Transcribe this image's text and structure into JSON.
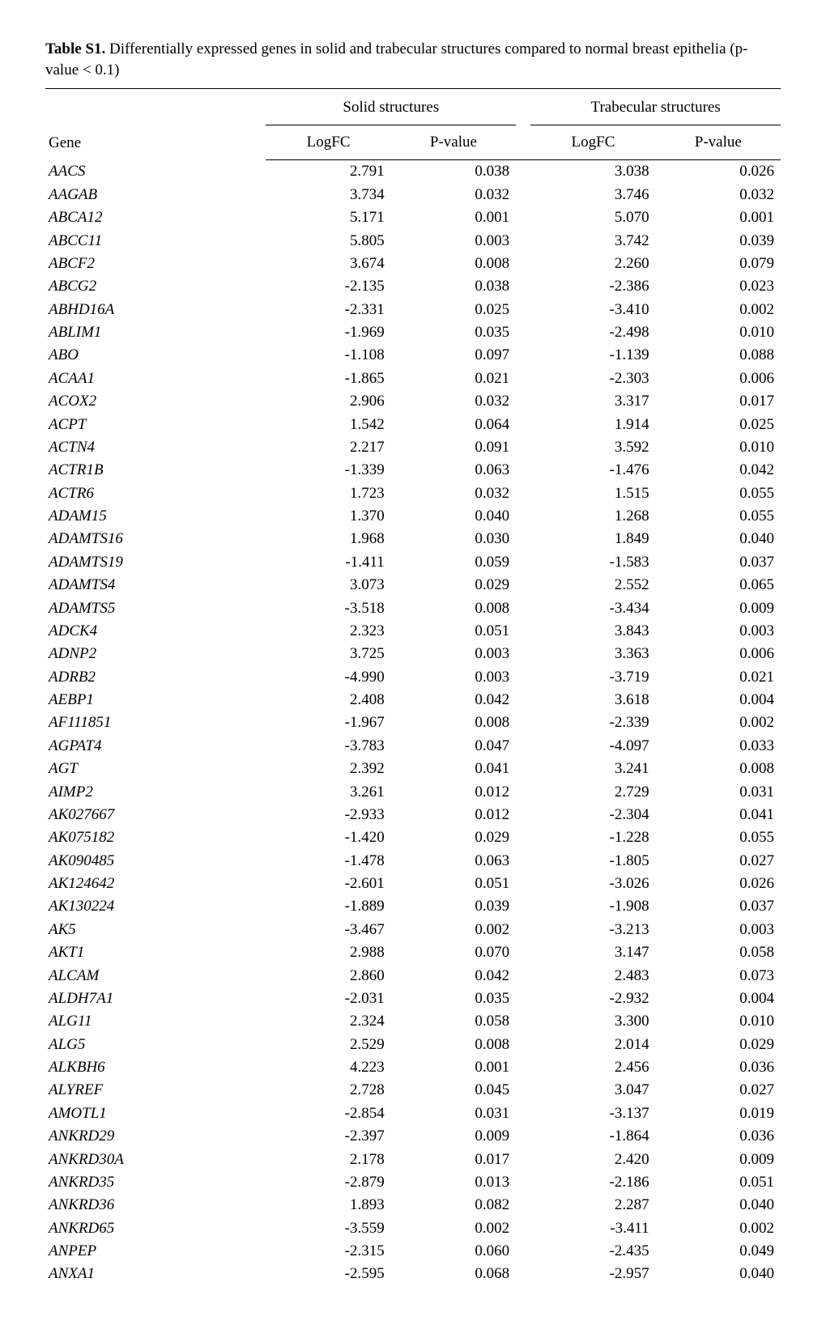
{
  "caption": {
    "label": "Table S1.",
    "text": " Differentially expressed genes in solid and trabecular structures compared to normal breast epithelia (p-value < 0.1)"
  },
  "header": {
    "gene": "Gene",
    "group1": "Solid structures",
    "group2": "Trabecular structures",
    "logfc": "LogFC",
    "pvalue": "P-value"
  },
  "columns": [
    "gene",
    "solid_logfc",
    "solid_p",
    "trab_logfc",
    "trab_p"
  ],
  "rows": [
    [
      "AACS",
      "2.791",
      "0.038",
      "3.038",
      "0.026"
    ],
    [
      "AAGAB",
      "3.734",
      "0.032",
      "3.746",
      "0.032"
    ],
    [
      "ABCA12",
      "5.171",
      "0.001",
      "5.070",
      "0.001"
    ],
    [
      "ABCC11",
      "5.805",
      "0.003",
      "3.742",
      "0.039"
    ],
    [
      "ABCF2",
      "3.674",
      "0.008",
      "2.260",
      "0.079"
    ],
    [
      "ABCG2",
      "-2.135",
      "0.038",
      "-2.386",
      "0.023"
    ],
    [
      "ABHD16A",
      "-2.331",
      "0.025",
      "-3.410",
      "0.002"
    ],
    [
      "ABLIM1",
      "-1.969",
      "0.035",
      "-2.498",
      "0.010"
    ],
    [
      "ABO",
      "-1.108",
      "0.097",
      "-1.139",
      "0.088"
    ],
    [
      "ACAA1",
      "-1.865",
      "0.021",
      "-2.303",
      "0.006"
    ],
    [
      "ACOX2",
      "2.906",
      "0.032",
      "3.317",
      "0.017"
    ],
    [
      "ACPT",
      "1.542",
      "0.064",
      "1.914",
      "0.025"
    ],
    [
      "ACTN4",
      "2.217",
      "0.091",
      "3.592",
      "0.010"
    ],
    [
      "ACTR1B",
      "-1.339",
      "0.063",
      "-1.476",
      "0.042"
    ],
    [
      "ACTR6",
      "1.723",
      "0.032",
      "1.515",
      "0.055"
    ],
    [
      "ADAM15",
      "1.370",
      "0.040",
      "1.268",
      "0.055"
    ],
    [
      "ADAMTS16",
      "1.968",
      "0.030",
      "1.849",
      "0.040"
    ],
    [
      "ADAMTS19",
      "-1.411",
      "0.059",
      "-1.583",
      "0.037"
    ],
    [
      "ADAMTS4",
      "3.073",
      "0.029",
      "2.552",
      "0.065"
    ],
    [
      "ADAMTS5",
      "-3.518",
      "0.008",
      "-3.434",
      "0.009"
    ],
    [
      "ADCK4",
      "2.323",
      "0.051",
      "3.843",
      "0.003"
    ],
    [
      "ADNP2",
      "3.725",
      "0.003",
      "3.363",
      "0.006"
    ],
    [
      "ADRB2",
      "-4.990",
      "0.003",
      "-3.719",
      "0.021"
    ],
    [
      "AEBP1",
      "2.408",
      "0.042",
      "3.618",
      "0.004"
    ],
    [
      "AF111851",
      "-1.967",
      "0.008",
      "-2.339",
      "0.002"
    ],
    [
      "AGPAT4",
      "-3.783",
      "0.047",
      "-4.097",
      "0.033"
    ],
    [
      "AGT",
      "2.392",
      "0.041",
      "3.241",
      "0.008"
    ],
    [
      "AIMP2",
      "3.261",
      "0.012",
      "2.729",
      "0.031"
    ],
    [
      "AK027667",
      "-2.933",
      "0.012",
      "-2.304",
      "0.041"
    ],
    [
      "AK075182",
      "-1.420",
      "0.029",
      "-1.228",
      "0.055"
    ],
    [
      "AK090485",
      "-1.478",
      "0.063",
      "-1.805",
      "0.027"
    ],
    [
      "AK124642",
      "-2.601",
      "0.051",
      "-3.026",
      "0.026"
    ],
    [
      "AK130224",
      "-1.889",
      "0.039",
      "-1.908",
      "0.037"
    ],
    [
      "AK5",
      "-3.467",
      "0.002",
      "-3.213",
      "0.003"
    ],
    [
      "AKT1",
      "2.988",
      "0.070",
      "3.147",
      "0.058"
    ],
    [
      "ALCAM",
      "2.860",
      "0.042",
      "2.483",
      "0.073"
    ],
    [
      "ALDH7A1",
      "-2.031",
      "0.035",
      "-2.932",
      "0.004"
    ],
    [
      "ALG11",
      "2.324",
      "0.058",
      "3.300",
      "0.010"
    ],
    [
      "ALG5",
      "2.529",
      "0.008",
      "2.014",
      "0.029"
    ],
    [
      "ALKBH6",
      "4.223",
      "0.001",
      "2.456",
      "0.036"
    ],
    [
      "ALYREF",
      "2.728",
      "0.045",
      "3.047",
      "0.027"
    ],
    [
      "AMOTL1",
      "-2.854",
      "0.031",
      "-3.137",
      "0.019"
    ],
    [
      "ANKRD29",
      "-2.397",
      "0.009",
      "-1.864",
      "0.036"
    ],
    [
      "ANKRD30A",
      "2.178",
      "0.017",
      "2.420",
      "0.009"
    ],
    [
      "ANKRD35",
      "-2.879",
      "0.013",
      "-2.186",
      "0.051"
    ],
    [
      "ANKRD36",
      "1.893",
      "0.082",
      "2.287",
      "0.040"
    ],
    [
      "ANKRD65",
      "-3.559",
      "0.002",
      "-3.411",
      "0.002"
    ],
    [
      "ANPEP",
      "-2.315",
      "0.060",
      "-2.435",
      "0.049"
    ],
    [
      "ANXA1",
      "-2.595",
      "0.068",
      "-2.957",
      "0.040"
    ]
  ]
}
